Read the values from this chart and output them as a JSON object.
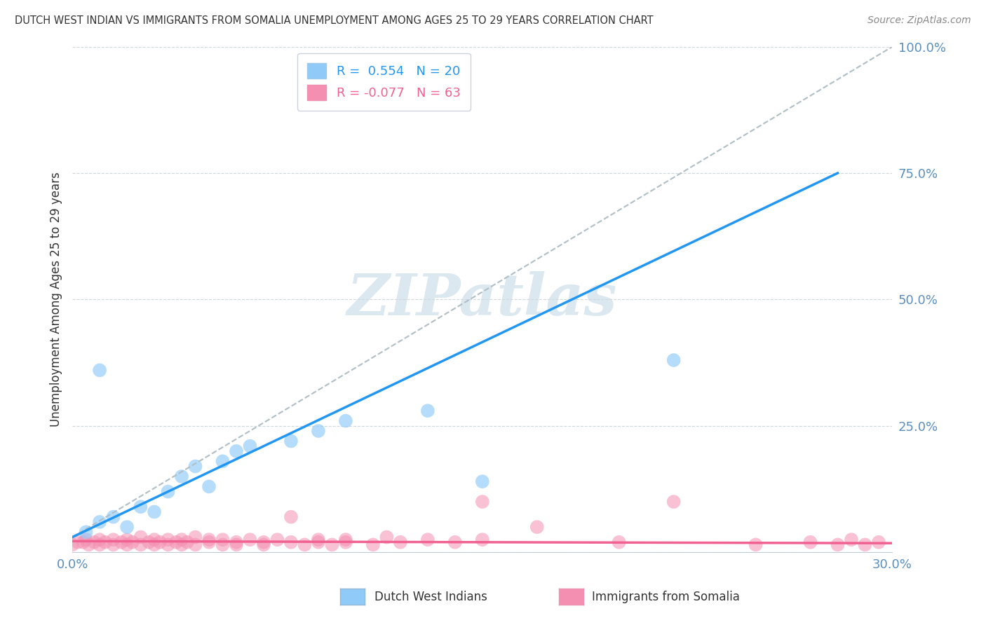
{
  "title": "DUTCH WEST INDIAN VS IMMIGRANTS FROM SOMALIA UNEMPLOYMENT AMONG AGES 25 TO 29 YEARS CORRELATION CHART",
  "source": "Source: ZipAtlas.com",
  "ylabel": "Unemployment Among Ages 25 to 29 years",
  "xlim": [
    0,
    0.3
  ],
  "ylim": [
    0,
    1.0
  ],
  "xticks": [
    0.0,
    0.1,
    0.2,
    0.3
  ],
  "xtick_labels": [
    "0.0%",
    "",
    "",
    "30.0%"
  ],
  "yticks": [
    0.0,
    0.25,
    0.5,
    0.75,
    1.0
  ],
  "ytick_labels": [
    "",
    "25.0%",
    "50.0%",
    "75.0%",
    "100.0%"
  ],
  "legend_entries": [
    {
      "label": "R =  0.554   N = 20",
      "color": "#7EC8E3"
    },
    {
      "label": "R = -0.077   N = 63",
      "color": "#FFB6C1"
    }
  ],
  "blue_dots": [
    [
      0.005,
      0.04
    ],
    [
      0.01,
      0.06
    ],
    [
      0.015,
      0.07
    ],
    [
      0.02,
      0.05
    ],
    [
      0.025,
      0.09
    ],
    [
      0.03,
      0.08
    ],
    [
      0.035,
      0.12
    ],
    [
      0.04,
      0.15
    ],
    [
      0.045,
      0.17
    ],
    [
      0.05,
      0.13
    ],
    [
      0.055,
      0.18
    ],
    [
      0.06,
      0.2
    ],
    [
      0.065,
      0.21
    ],
    [
      0.01,
      0.36
    ],
    [
      0.08,
      0.22
    ],
    [
      0.09,
      0.24
    ],
    [
      0.1,
      0.26
    ],
    [
      0.13,
      0.28
    ],
    [
      0.15,
      0.14
    ],
    [
      0.22,
      0.38
    ]
  ],
  "pink_dots": [
    [
      0.0,
      0.015
    ],
    [
      0.002,
      0.02
    ],
    [
      0.004,
      0.02
    ],
    [
      0.005,
      0.025
    ],
    [
      0.006,
      0.015
    ],
    [
      0.008,
      0.02
    ],
    [
      0.01,
      0.015
    ],
    [
      0.01,
      0.025
    ],
    [
      0.012,
      0.02
    ],
    [
      0.015,
      0.015
    ],
    [
      0.015,
      0.025
    ],
    [
      0.018,
      0.02
    ],
    [
      0.02,
      0.015
    ],
    [
      0.02,
      0.025
    ],
    [
      0.022,
      0.02
    ],
    [
      0.025,
      0.015
    ],
    [
      0.025,
      0.03
    ],
    [
      0.028,
      0.02
    ],
    [
      0.03,
      0.015
    ],
    [
      0.03,
      0.025
    ],
    [
      0.032,
      0.02
    ],
    [
      0.035,
      0.015
    ],
    [
      0.035,
      0.025
    ],
    [
      0.038,
      0.02
    ],
    [
      0.04,
      0.015
    ],
    [
      0.04,
      0.025
    ],
    [
      0.042,
      0.02
    ],
    [
      0.045,
      0.015
    ],
    [
      0.045,
      0.03
    ],
    [
      0.05,
      0.02
    ],
    [
      0.05,
      0.025
    ],
    [
      0.055,
      0.015
    ],
    [
      0.055,
      0.025
    ],
    [
      0.06,
      0.02
    ],
    [
      0.06,
      0.015
    ],
    [
      0.065,
      0.025
    ],
    [
      0.07,
      0.02
    ],
    [
      0.07,
      0.015
    ],
    [
      0.075,
      0.025
    ],
    [
      0.08,
      0.02
    ],
    [
      0.08,
      0.07
    ],
    [
      0.085,
      0.015
    ],
    [
      0.09,
      0.025
    ],
    [
      0.09,
      0.02
    ],
    [
      0.095,
      0.015
    ],
    [
      0.1,
      0.025
    ],
    [
      0.1,
      0.02
    ],
    [
      0.11,
      0.015
    ],
    [
      0.115,
      0.03
    ],
    [
      0.12,
      0.02
    ],
    [
      0.13,
      0.025
    ],
    [
      0.14,
      0.02
    ],
    [
      0.15,
      0.025
    ],
    [
      0.15,
      0.1
    ],
    [
      0.17,
      0.05
    ],
    [
      0.2,
      0.02
    ],
    [
      0.22,
      0.1
    ],
    [
      0.25,
      0.015
    ],
    [
      0.27,
      0.02
    ],
    [
      0.28,
      0.015
    ],
    [
      0.285,
      0.025
    ],
    [
      0.29,
      0.015
    ],
    [
      0.295,
      0.02
    ]
  ],
  "blue_line": [
    [
      0.0,
      0.03
    ],
    [
      0.28,
      0.75
    ]
  ],
  "pink_line": [
    [
      0.0,
      0.022
    ],
    [
      0.3,
      0.018
    ]
  ],
  "dash_line": [
    [
      0.0,
      0.03
    ],
    [
      0.3,
      1.0
    ]
  ],
  "blue_line_color": "#2196F3",
  "pink_line_color": "#F06292",
  "blue_dot_color": "#90CAF9",
  "pink_dot_color": "#F48FB1",
  "dashed_line_color": "#B0BEC5",
  "grid_color": "#CFD8DC",
  "background_color": "#ffffff",
  "watermark": "ZIPatlas",
  "watermark_color": "#dce8f0",
  "title_color": "#333333",
  "source_color": "#888888",
  "tick_color": "#5a8fc0",
  "ylabel_color": "#333333"
}
